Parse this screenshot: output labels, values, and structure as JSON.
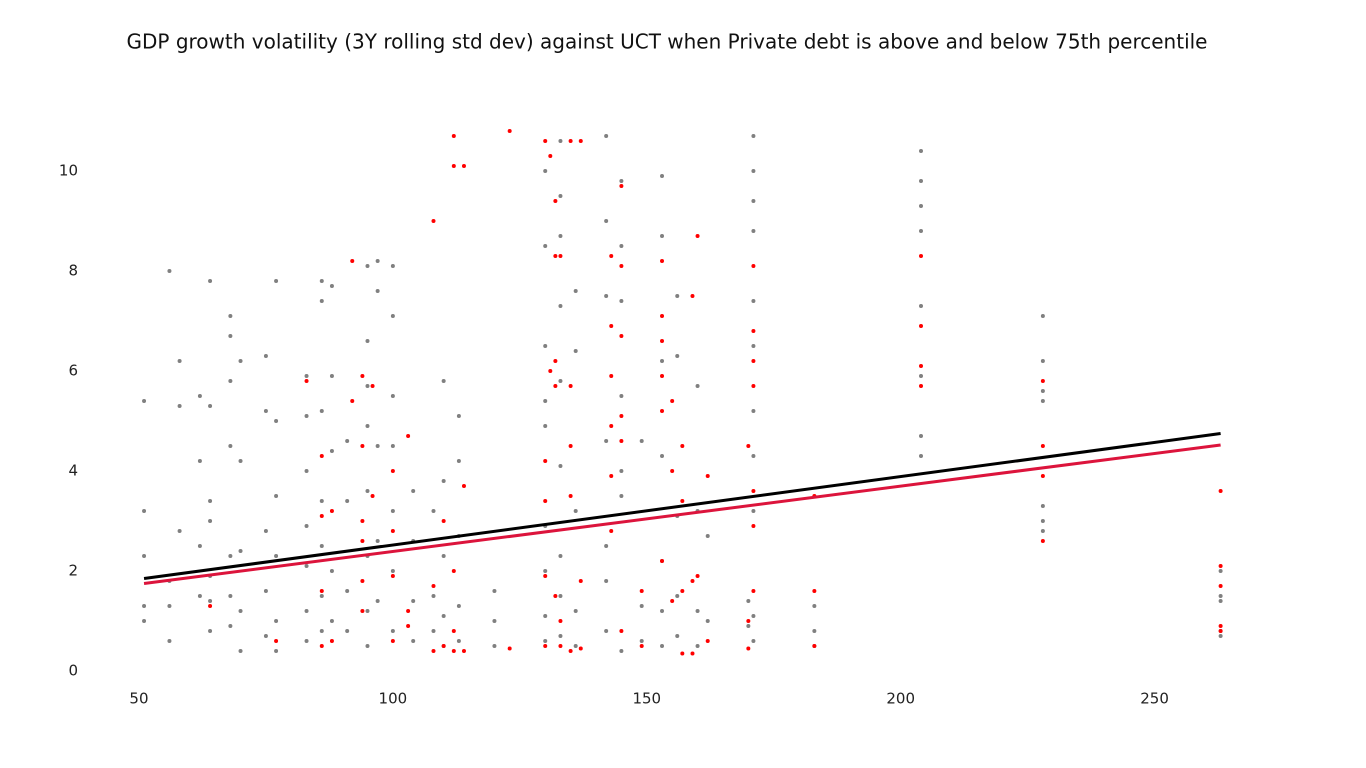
{
  "chart_data": {
    "type": "scatter",
    "title": "GDP growth volatility (3Y rolling std dev) against UCT when Private debt is above and below 75th percentile",
    "xlim": [
      44,
      268
    ],
    "ylim": [
      -0.4,
      11.0
    ],
    "xticks": [
      50,
      100,
      150,
      200,
      250
    ],
    "yticks": [
      0,
      2,
      4,
      6,
      8,
      10
    ],
    "grid": false,
    "series": [
      {
        "color": "#808080",
        "x": [
          51,
          51,
          51,
          51,
          51,
          56,
          56,
          56,
          56,
          58,
          58,
          58,
          62,
          62,
          62,
          62,
          64,
          64,
          64,
          64,
          64,
          64,
          64,
          68,
          68,
          68,
          68,
          68,
          68,
          68,
          70,
          70,
          70,
          70,
          70,
          75,
          75,
          75,
          75,
          75,
          77,
          77,
          77,
          77,
          77,
          77,
          83,
          83,
          83,
          83,
          83,
          83,
          83,
          86,
          86,
          86,
          86,
          86,
          86,
          86,
          88,
          88,
          88,
          88,
          88,
          91,
          91,
          91,
          91,
          95,
          95,
          95,
          95,
          95,
          95,
          95,
          95,
          97,
          97,
          97,
          97,
          97,
          100,
          100,
          100,
          100,
          100,
          100,
          100,
          104,
          104,
          104,
          104,
          108,
          108,
          108,
          110,
          110,
          110,
          110,
          110,
          113,
          113,
          113,
          113,
          113,
          120,
          120,
          120,
          130,
          130,
          130,
          130,
          130,
          130,
          130,
          130,
          130,
          133,
          133,
          133,
          133,
          133,
          133,
          133,
          133,
          133,
          136,
          136,
          136,
          136,
          136,
          142,
          142,
          142,
          142,
          142,
          142,
          142,
          145,
          145,
          145,
          145,
          145,
          145,
          145,
          149,
          149,
          149,
          153,
          153,
          153,
          153,
          153,
          153,
          153,
          156,
          156,
          156,
          156,
          156,
          160,
          160,
          160,
          160,
          162,
          162,
          170,
          170,
          171,
          171,
          171,
          171,
          171,
          171,
          171,
          171,
          171,
          171,
          171,
          183,
          183,
          183,
          204,
          204,
          204,
          204,
          204,
          204,
          204,
          204,
          228,
          228,
          228,
          228,
          228,
          228,
          228,
          263,
          263,
          263,
          263,
          263
        ],
        "values": [
          5.4,
          3.2,
          2.3,
          1.3,
          1.0,
          8.0,
          1.8,
          1.3,
          0.6,
          6.2,
          5.3,
          2.8,
          5.5,
          4.2,
          2.5,
          1.5,
          7.8,
          5.3,
          3.4,
          3.0,
          1.9,
          1.4,
          0.8,
          7.1,
          6.7,
          5.8,
          4.5,
          2.3,
          1.5,
          0.9,
          6.2,
          4.2,
          2.4,
          1.2,
          0.4,
          6.3,
          5.2,
          2.8,
          1.6,
          0.7,
          7.8,
          5.0,
          3.5,
          2.3,
          1.0,
          0.4,
          5.9,
          5.1,
          4.0,
          2.9,
          2.1,
          1.2,
          0.6,
          7.8,
          7.4,
          5.2,
          3.4,
          2.5,
          1.5,
          0.8,
          7.7,
          5.9,
          4.4,
          2.0,
          1.0,
          4.6,
          3.4,
          1.6,
          0.8,
          8.1,
          6.6,
          5.7,
          4.9,
          3.6,
          2.3,
          1.2,
          0.5,
          8.2,
          7.6,
          4.5,
          2.6,
          1.4,
          8.1,
          7.1,
          5.5,
          4.5,
          3.2,
          2.0,
          0.8,
          3.6,
          2.6,
          1.4,
          0.6,
          3.2,
          1.5,
          0.8,
          5.8,
          3.8,
          2.3,
          1.1,
          0.5,
          5.1,
          4.2,
          2.7,
          1.3,
          0.6,
          1.6,
          1.0,
          0.5,
          10.0,
          8.5,
          6.5,
          5.4,
          4.9,
          2.9,
          2.0,
          1.1,
          0.6,
          10.6,
          9.5,
          8.7,
          7.3,
          5.8,
          4.1,
          2.3,
          1.5,
          0.7,
          7.6,
          6.4,
          3.2,
          1.2,
          0.5,
          10.7,
          9.0,
          7.5,
          4.6,
          2.5,
          1.8,
          0.8,
          9.8,
          8.5,
          7.4,
          5.5,
          3.5,
          4.0,
          0.4,
          4.6,
          1.3,
          0.6,
          9.9,
          8.7,
          6.2,
          4.3,
          2.2,
          1.2,
          0.5,
          7.5,
          6.3,
          3.1,
          1.5,
          0.7,
          5.7,
          3.2,
          1.2,
          0.5,
          2.7,
          1.0,
          1.4,
          0.9,
          10.7,
          10.0,
          9.4,
          8.8,
          7.4,
          6.5,
          5.2,
          4.3,
          3.2,
          1.1,
          0.6,
          1.3,
          0.8,
          0.5,
          10.4,
          9.8,
          9.3,
          8.8,
          7.3,
          5.9,
          4.7,
          4.3,
          7.1,
          6.2,
          5.6,
          5.4,
          3.3,
          3.0,
          2.8,
          2.0,
          1.5,
          1.4,
          0.8,
          0.7
        ]
      },
      {
        "color": "#ff0000",
        "x": [
          64,
          77,
          83,
          86,
          86,
          86,
          86,
          88,
          88,
          92,
          92,
          94,
          94,
          94,
          94,
          94,
          94,
          96,
          96,
          100,
          100,
          100,
          100,
          103,
          103,
          103,
          108,
          108,
          108,
          110,
          110,
          112,
          112,
          112,
          112,
          112,
          114,
          114,
          114,
          123,
          123,
          130,
          130,
          130,
          130,
          130,
          131,
          131,
          132,
          132,
          132,
          132,
          132,
          133,
          133,
          133,
          135,
          135,
          135,
          135,
          135,
          137,
          137,
          137,
          143,
          143,
          143,
          143,
          143,
          143,
          145,
          145,
          145,
          145,
          145,
          145,
          149,
          149,
          153,
          153,
          153,
          153,
          153,
          153,
          155,
          155,
          155,
          157,
          157,
          157,
          157,
          159,
          159,
          159,
          160,
          160,
          162,
          162,
          170,
          170,
          170,
          171,
          171,
          171,
          171,
          171,
          171,
          171,
          183,
          183,
          183,
          204,
          204,
          204,
          204,
          228,
          228,
          228,
          228,
          263,
          263,
          263,
          263,
          263
        ],
        "values": [
          1.3,
          0.6,
          5.8,
          4.3,
          3.1,
          1.6,
          0.5,
          3.2,
          0.6,
          8.2,
          5.4,
          5.9,
          4.5,
          3.0,
          2.6,
          1.8,
          1.2,
          5.7,
          3.5,
          4.0,
          2.8,
          1.9,
          0.6,
          4.7,
          1.2,
          0.9,
          9.0,
          1.7,
          0.4,
          3.0,
          0.5,
          10.7,
          10.1,
          2.0,
          0.8,
          0.4,
          10.1,
          3.7,
          0.4,
          10.8,
          0.45,
          10.6,
          4.2,
          3.4,
          1.9,
          0.5,
          10.3,
          6.0,
          9.4,
          8.3,
          6.2,
          5.7,
          1.5,
          8.3,
          1.0,
          0.5,
          10.6,
          5.7,
          4.5,
          3.5,
          0.4,
          10.6,
          1.8,
          0.45,
          8.3,
          6.9,
          5.9,
          4.9,
          3.9,
          2.8,
          9.7,
          8.1,
          6.7,
          5.1,
          4.6,
          0.8,
          1.6,
          0.5,
          8.2,
          7.1,
          6.6,
          5.9,
          5.2,
          2.2,
          5.4,
          4.0,
          1.4,
          4.5,
          3.4,
          1.6,
          0.35,
          7.5,
          1.8,
          0.35,
          8.7,
          1.9,
          3.9,
          0.6,
          4.5,
          1.0,
          0.45,
          8.1,
          6.8,
          6.2,
          5.7,
          3.6,
          2.9,
          1.6,
          3.5,
          1.6,
          0.5,
          8.3,
          6.9,
          6.1,
          5.7,
          5.8,
          4.5,
          3.9,
          2.6,
          3.6,
          2.1,
          1.7,
          0.9,
          0.8
        ]
      }
    ],
    "lines": [
      {
        "color": "#000000",
        "x": [
          51,
          263
        ],
        "values": [
          1.85,
          4.75
        ]
      },
      {
        "color": "#dc143c",
        "x": [
          51,
          263
        ],
        "values": [
          1.75,
          4.52
        ]
      }
    ]
  }
}
